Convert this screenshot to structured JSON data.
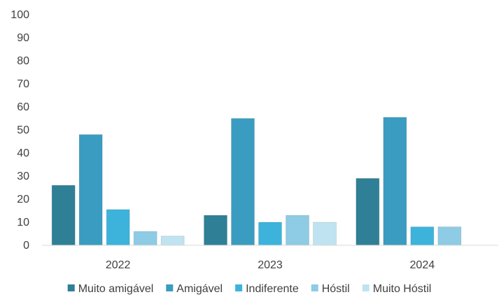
{
  "chart_data": {
    "type": "bar",
    "title": "",
    "xlabel": "",
    "ylabel": "",
    "ylim": [
      0,
      100
    ],
    "yticks": [
      0,
      10,
      20,
      30,
      40,
      50,
      60,
      70,
      80,
      90,
      100
    ],
    "grid": false,
    "legend_position": "bottom",
    "categories": [
      "2022",
      "2023",
      "2024"
    ],
    "series": [
      {
        "name": "Muito amigável",
        "color": "#2f7f97",
        "values": [
          26,
          13,
          29
        ]
      },
      {
        "name": "Amigável",
        "color": "#3a9cc0",
        "values": [
          48,
          55,
          55.5
        ]
      },
      {
        "name": "Indiferente",
        "color": "#3db3db",
        "values": [
          15.5,
          10,
          8
        ]
      },
      {
        "name": "Hóstil",
        "color": "#8ecbe4",
        "values": [
          6,
          13,
          8
        ]
      },
      {
        "name": "Muito Hóstil",
        "color": "#bfe3f1",
        "values": [
          4,
          10,
          0
        ]
      }
    ]
  }
}
